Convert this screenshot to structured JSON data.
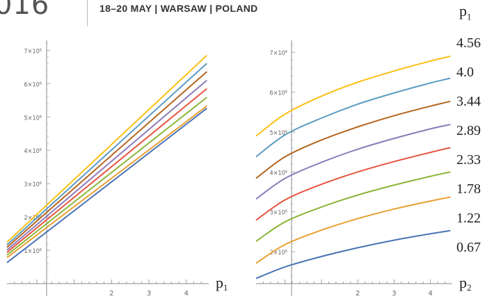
{
  "banner": {
    "year_fragment": "016",
    "event_text": "18–20 MAY | WARSAW | POLAND"
  },
  "legend": {
    "title_main": "p",
    "title_sub": "1",
    "items": [
      "4.56",
      "4.0",
      "3.44",
      "2.89",
      "2.33",
      "1.78",
      "1.22",
      "0.67"
    ]
  },
  "colors": [
    "#fbbf14",
    "#5b9bc2",
    "#b5651d",
    "#8b7bb8",
    "#e5543f",
    "#8ab63a",
    "#e8a030",
    "#4a73b5"
  ],
  "chart_data": [
    {
      "type": "line",
      "xlabel_main": "p",
      "xlabel_sub": "1",
      "xlim": [
        -0.8,
        4.6
      ],
      "ylim": [
        0,
        7300000
      ],
      "xticks": [
        2,
        3,
        4
      ],
      "yticks": [
        {
          "v": 1000000,
          "label": "1×10⁶"
        },
        {
          "v": 2000000,
          "label": "2×10⁶"
        },
        {
          "v": 3000000,
          "label": "3×10⁶"
        },
        {
          "v": 4000000,
          "label": "4×10⁶"
        },
        {
          "v": 5000000,
          "label": "5×10⁶"
        },
        {
          "v": 6000000,
          "label": "6×10⁶"
        },
        {
          "v": 7000000,
          "label": "7×10⁶"
        }
      ],
      "series": [
        {
          "y0": 1240000,
          "y1": 6850000
        },
        {
          "y0": 1160000,
          "y1": 6610000
        },
        {
          "y0": 1090000,
          "y1": 6360000
        },
        {
          "y0": 1010000,
          "y1": 6100000
        },
        {
          "y0": 940000,
          "y1": 5850000
        },
        {
          "y0": 860000,
          "y1": 5590000
        },
        {
          "y0": 780000,
          "y1": 5330000
        },
        {
          "y0": 630000,
          "y1": 5260000
        }
      ],
      "x_start": -0.8,
      "x_end": 4.55
    },
    {
      "type": "line",
      "xlabel_main": "p",
      "xlabel_sub": "2",
      "xlim": [
        -0.8,
        4.6
      ],
      "ylim": [
        1200000,
        7300000
      ],
      "xticks": [
        2,
        3,
        4
      ],
      "yticks": [
        {
          "v": 2000000,
          "label": "2×10⁶"
        },
        {
          "v": 3000000,
          "label": "3×10⁶"
        },
        {
          "v": 4000000,
          "label": "4×10⁶"
        },
        {
          "v": 5000000,
          "label": "5×10⁶"
        },
        {
          "v": 6000000,
          "label": "6×10⁶"
        },
        {
          "v": 7000000,
          "label": "7×10⁶"
        }
      ],
      "series": [
        {
          "points": [
            [
              -0.8,
              4900000
            ],
            [
              0,
              5450000
            ],
            [
              1,
              5900000
            ],
            [
              2,
              6250000
            ],
            [
              3,
              6530000
            ],
            [
              4,
              6780000
            ],
            [
              4.55,
              6900000
            ]
          ]
        },
        {
          "points": [
            [
              -0.8,
              4380000
            ],
            [
              0,
              4930000
            ],
            [
              1,
              5350000
            ],
            [
              2,
              5700000
            ],
            [
              3,
              5980000
            ],
            [
              4,
              6230000
            ],
            [
              4.55,
              6350000
            ]
          ]
        },
        {
          "points": [
            [
              -0.8,
              3840000
            ],
            [
              0,
              4380000
            ],
            [
              1,
              4800000
            ],
            [
              2,
              5130000
            ],
            [
              3,
              5410000
            ],
            [
              4,
              5650000
            ],
            [
              4.55,
              5770000
            ]
          ]
        },
        {
          "points": [
            [
              -0.8,
              3320000
            ],
            [
              0,
              3840000
            ],
            [
              1,
              4240000
            ],
            [
              2,
              4570000
            ],
            [
              3,
              4840000
            ],
            [
              4,
              5080000
            ],
            [
              4.55,
              5190000
            ]
          ]
        },
        {
          "points": [
            [
              -0.8,
              2790000
            ],
            [
              0,
              3300000
            ],
            [
              1,
              3690000
            ],
            [
              2,
              4000000
            ],
            [
              3,
              4260000
            ],
            [
              4,
              4490000
            ],
            [
              4.55,
              4610000
            ]
          ]
        },
        {
          "points": [
            [
              -0.8,
              2260000
            ],
            [
              0,
              2750000
            ],
            [
              1,
              3120000
            ],
            [
              2,
              3420000
            ],
            [
              3,
              3670000
            ],
            [
              4,
              3890000
            ],
            [
              4.55,
              4000000
            ]
          ]
        },
        {
          "points": [
            [
              -0.8,
              1710000
            ],
            [
              0,
              2180000
            ],
            [
              1,
              2540000
            ],
            [
              2,
              2830000
            ],
            [
              3,
              3070000
            ],
            [
              4,
              3270000
            ],
            [
              4.55,
              3370000
            ]
          ]
        },
        {
          "points": [
            [
              -0.8,
              1330000
            ],
            [
              0,
              1620000
            ],
            [
              1,
              1880000
            ],
            [
              2,
              2100000
            ],
            [
              3,
              2290000
            ],
            [
              4,
              2450000
            ],
            [
              4.55,
              2530000
            ]
          ]
        }
      ]
    }
  ]
}
